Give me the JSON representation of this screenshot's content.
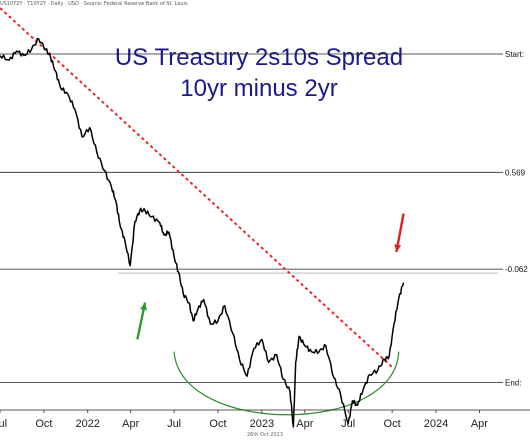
{
  "header_note": "US10Y2Y · T10Y2Y · Daily · USD · Source: Federal Reserve Bank of St. Louis",
  "footer_date": "26th Oct 2023",
  "colors": {
    "title": "#1a1a8c",
    "price": "#000000",
    "trendline": "#e8272a",
    "arc": "#2a8c2a",
    "green_arrow": "#2e9a2e",
    "red_arrow": "#e02020",
    "level_line": "#222222",
    "band_line": "#bdbdbd"
  },
  "chart_data": {
    "type": "line",
    "title": "US Treasury 2s10s Spread",
    "subtitle": "10yr minus 2yr",
    "x_tick_labels": [
      "Jul",
      "Oct",
      "2022",
      "Apr",
      "Jul",
      "Oct",
      "2023",
      "Apr",
      "Jul",
      "Oct",
      "2024",
      "Apr"
    ],
    "levels": [
      {
        "name": "start",
        "label": "Start:",
        "value": 1.34
      },
      {
        "name": "mid-a",
        "label": "0.569",
        "value": 0.569
      },
      {
        "name": "mid-b",
        "label": "-0.062",
        "value": -0.062
      },
      {
        "name": "end",
        "label": "End:",
        "value": -0.8
      }
    ],
    "ylim": [
      -0.98,
      1.64
    ],
    "xlim": [
      "2021-07-01",
      "2024-05-10"
    ],
    "grid": false,
    "series": [
      {
        "type": "line",
        "x": [
          "2021-07-01",
          "2021-07-20",
          "2021-08-05",
          "2021-08-20",
          "2021-09-05",
          "2021-09-20",
          "2021-10-05",
          "2021-10-15",
          "2021-10-25",
          "2021-11-05",
          "2021-11-20",
          "2021-12-05",
          "2021-12-20",
          "2022-01-05",
          "2022-01-20",
          "2022-02-05",
          "2022-02-20",
          "2022-03-01",
          "2022-03-10",
          "2022-03-20",
          "2022-03-31",
          "2022-04-10",
          "2022-04-20",
          "2022-05-01",
          "2022-05-15",
          "2022-06-01",
          "2022-06-10",
          "2022-06-20",
          "2022-07-01",
          "2022-07-10",
          "2022-07-20",
          "2022-08-01",
          "2022-08-10",
          "2022-08-20",
          "2022-09-01",
          "2022-09-15",
          "2022-10-01",
          "2022-10-15",
          "2022-11-01",
          "2022-11-15",
          "2022-12-01",
          "2022-12-15",
          "2023-01-01",
          "2023-01-15",
          "2023-02-01",
          "2023-02-15",
          "2023-03-01",
          "2023-03-08",
          "2023-03-13",
          "2023-03-20",
          "2023-04-01",
          "2023-04-15",
          "2023-05-01",
          "2023-05-15",
          "2023-06-01",
          "2023-06-15",
          "2023-07-01",
          "2023-07-10",
          "2023-07-20",
          "2023-08-01",
          "2023-08-15",
          "2023-09-01",
          "2023-09-15",
          "2023-09-25",
          "2023-10-05",
          "2023-10-15",
          "2023-10-25"
        ],
        "y": [
          1.33,
          1.3,
          1.36,
          1.33,
          1.37,
          1.44,
          1.37,
          1.32,
          1.23,
          1.12,
          1.08,
          0.98,
          0.8,
          0.86,
          0.7,
          0.58,
          0.47,
          0.38,
          0.22,
          0.12,
          -0.04,
          0.25,
          0.32,
          0.32,
          0.28,
          0.24,
          0.16,
          0.18,
          0.02,
          -0.08,
          -0.22,
          -0.28,
          -0.4,
          -0.32,
          -0.26,
          -0.42,
          -0.4,
          -0.3,
          -0.48,
          -0.65,
          -0.76,
          -0.58,
          -0.52,
          -0.67,
          -0.62,
          -0.78,
          -0.86,
          -1.09,
          -0.67,
          -0.5,
          -0.56,
          -0.6,
          -0.6,
          -0.56,
          -0.77,
          -0.88,
          -1.07,
          -0.92,
          -0.95,
          -0.85,
          -0.75,
          -0.72,
          -0.65,
          -0.63,
          -0.42,
          -0.25,
          -0.15
        ]
      },
      {
        "type": "trendline",
        "style": "dotted",
        "x": [
          "2021-07-01",
          "2023-10-01"
        ],
        "y": [
          1.64,
          -0.7
        ]
      },
      {
        "type": "arc",
        "x": [
          "2022-07-01",
          "2023-01-15",
          "2023-07-15",
          "2023-10-15"
        ],
        "y": [
          -0.6,
          -1.12,
          -1.02,
          -0.6
        ]
      }
    ],
    "annotations": [
      {
        "type": "arrow",
        "color": "green",
        "from": [
          "2022-04-15",
          -0.52
        ],
        "to": [
          "2022-05-01",
          -0.28
        ]
      },
      {
        "type": "arrow",
        "color": "red",
        "from": [
          "2023-10-25",
          0.3
        ],
        "to": [
          "2023-10-10",
          0.05
        ]
      }
    ]
  }
}
